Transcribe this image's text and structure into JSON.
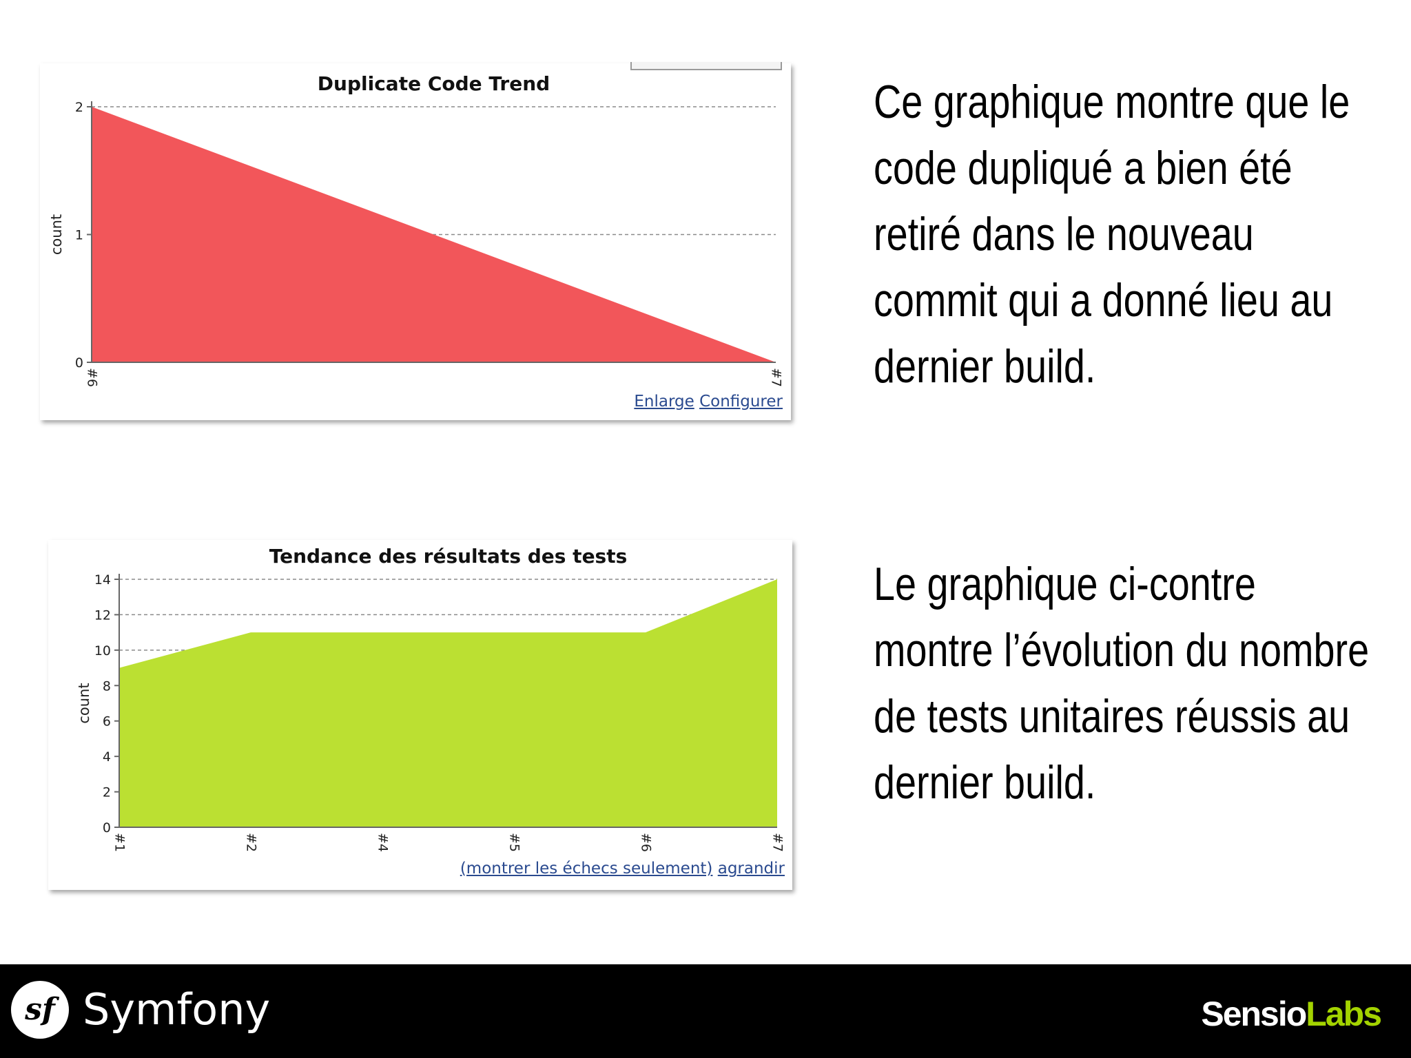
{
  "chart_data": [
    {
      "type": "area",
      "title": "Duplicate Code Trend",
      "ylabel": "count",
      "xlabel": "",
      "x": [
        "#6",
        "#7"
      ],
      "series": [
        {
          "values": [
            2,
            0
          ]
        }
      ],
      "ylim": [
        0,
        2
      ],
      "yticks": [
        0,
        1,
        2
      ],
      "grid": true,
      "color": "#f2565a"
    },
    {
      "type": "area",
      "title": "Tendance des résultats des tests",
      "ylabel": "count",
      "xlabel": "",
      "x": [
        "#1",
        "#2",
        "#4",
        "#5",
        "#6",
        "#7"
      ],
      "series": [
        {
          "values": [
            9,
            11,
            11,
            11,
            11,
            14
          ]
        }
      ],
      "ylim": [
        0,
        14
      ],
      "yticks": [
        0,
        2,
        4,
        6,
        8,
        10,
        12,
        14
      ],
      "grid": true,
      "color": "#bbe032"
    }
  ],
  "links1": {
    "enlarge": "Enlarge",
    "configure": "Configurer"
  },
  "links2": {
    "failures_only": "(montrer les échecs seulement)",
    "enlarge": "agrandir"
  },
  "captions": {
    "first": "Ce graphique montre que le code dupliqué a bien été retiré dans le nouveau commit qui a donné lieu au dernier build.",
    "second": "Le graphique ci-contre montre l’évolution du nombre de tests unitaires réussis au dernier build."
  },
  "footer": {
    "logo_glyph": "sf",
    "brand": "Symfony",
    "partner_a": "Sensio",
    "partner_b": "Labs",
    "partner_a_color": "#ffffff",
    "partner_b_color": "#a3d300"
  }
}
